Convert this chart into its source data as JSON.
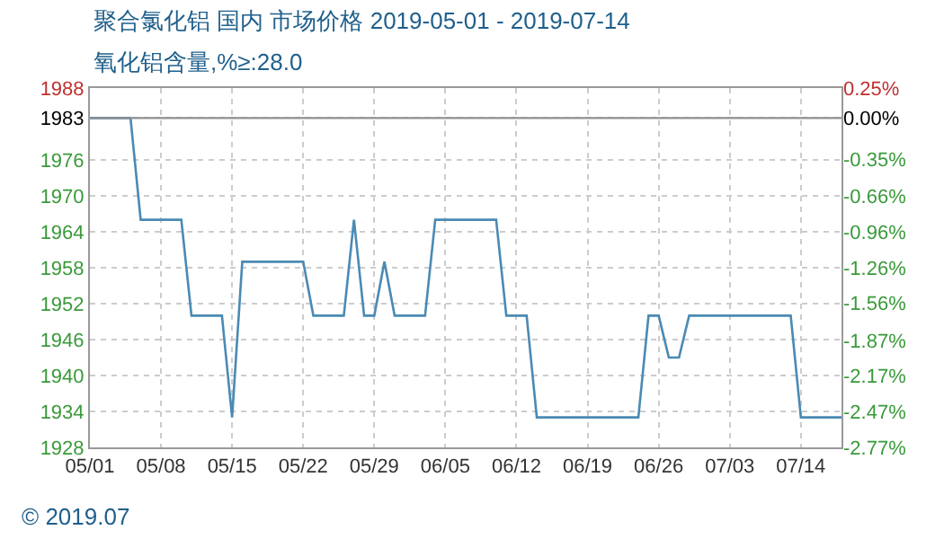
{
  "chart_data": {
    "type": "line",
    "title": "聚合氯化铝 国内 市场价格 2019-05-01 - 2019-07-14",
    "subtitle": "氧化铝含量,%≥:28.0",
    "x": [
      "2019-05-01",
      "2019-05-05",
      "2019-05-06",
      "2019-05-10",
      "2019-05-11",
      "2019-05-14",
      "2019-05-15",
      "2019-05-16",
      "2019-05-22",
      "2019-05-23",
      "2019-05-26",
      "2019-05-27",
      "2019-05-28",
      "2019-05-29",
      "2019-05-30",
      "2019-05-31",
      "2019-06-03",
      "2019-06-04",
      "2019-06-10",
      "2019-06-11",
      "2019-06-13",
      "2019-06-14",
      "2019-06-24",
      "2019-06-25",
      "2019-06-26",
      "2019-06-27",
      "2019-06-28",
      "2019-06-29",
      "2019-07-09",
      "2019-07-10",
      "2019-07-14"
    ],
    "series": [
      {
        "color": "#4a8ab4",
        "values": [
          1983,
          1983,
          1966,
          1966,
          1950,
          1950,
          1933,
          1959,
          1959,
          1950,
          1950,
          1966,
          1950,
          1950,
          1959,
          1950,
          1950,
          1966,
          1966,
          1950,
          1950,
          1933,
          1933,
          1950,
          1950,
          1943,
          1943,
          1950,
          1950,
          1933,
          1933
        ]
      }
    ],
    "xlim": [
      "2019-05-01",
      "2019-07-14"
    ],
    "xticks": [
      {
        "value": "2019-05-01",
        "label": "05/01"
      },
      {
        "value": "2019-05-08",
        "label": "05/08"
      },
      {
        "value": "2019-05-15",
        "label": "05/15"
      },
      {
        "value": "2019-05-22",
        "label": "05/22"
      },
      {
        "value": "2019-05-29",
        "label": "05/29"
      },
      {
        "value": "2019-06-05",
        "label": "06/05"
      },
      {
        "value": "2019-06-12",
        "label": "06/12"
      },
      {
        "value": "2019-06-19",
        "label": "06/19"
      },
      {
        "value": "2019-06-26",
        "label": "06/26"
      },
      {
        "value": "2019-07-03",
        "label": "07/03"
      },
      {
        "value": "2019-07-10",
        "label": "07/14"
      }
    ],
    "ylim": [
      1928,
      1988
    ],
    "yticks": [
      1928,
      1934,
      1940,
      1946,
      1952,
      1958,
      1964,
      1970,
      1976,
      1983,
      1988
    ],
    "y2lim": [
      -2.77,
      0.25
    ],
    "y2ticks": [
      {
        "value": -2.77,
        "label": "-2.77%"
      },
      {
        "value": -2.47,
        "label": "-2.47%"
      },
      {
        "value": -2.17,
        "label": "-2.17%"
      },
      {
        "value": -1.87,
        "label": "-1.87%"
      },
      {
        "value": -1.56,
        "label": "-1.56%"
      },
      {
        "value": -1.26,
        "label": "-1.26%"
      },
      {
        "value": -0.96,
        "label": "-0.96%"
      },
      {
        "value": -0.66,
        "label": "-0.66%"
      },
      {
        "value": -0.35,
        "label": "-0.35%"
      },
      {
        "value": 0,
        "label": "0.00%"
      },
      {
        "value": 0.25,
        "label": "0.25%"
      }
    ],
    "ref_lines": [
      {
        "axis": "y",
        "value": 1983,
        "color": "#909090"
      }
    ],
    "annotations": [
      "© 2019.07"
    ],
    "grid": true,
    "marker": "none",
    "line_style": "solid",
    "legend": false
  }
}
